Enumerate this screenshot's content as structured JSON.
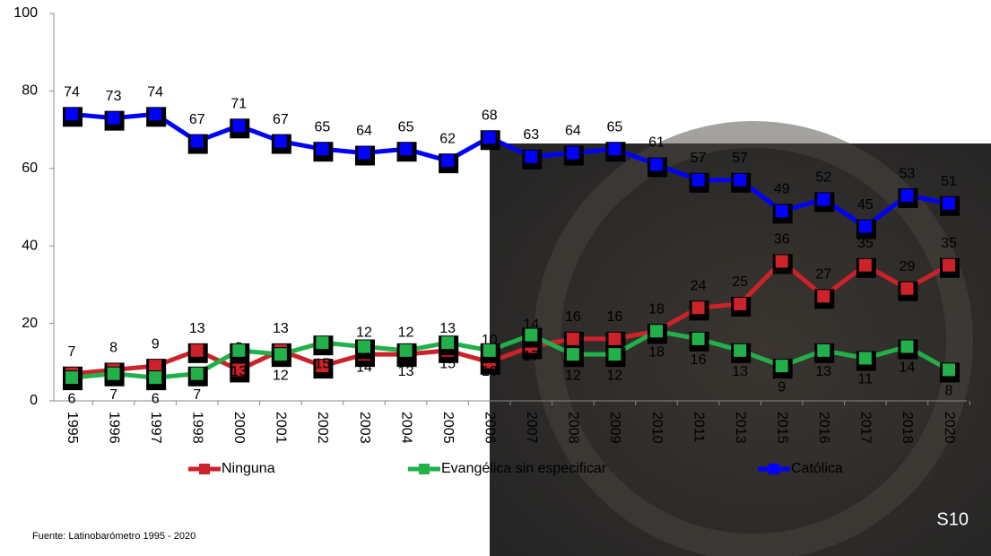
{
  "chart_data": {
    "type": "line",
    "categories": [
      "1995",
      "1996",
      "1997",
      "1998",
      "2000",
      "2001",
      "2002",
      "2003",
      "2004",
      "2005",
      "2006",
      "2007",
      "2008",
      "2009",
      "2010",
      "2011",
      "2013",
      "2015",
      "2016",
      "2017",
      "2018",
      "2020"
    ],
    "series": [
      {
        "name": "Ninguna",
        "color": "#cc2229",
        "values": [
          7,
          8,
          9,
          13,
          8,
          13,
          9,
          12,
          12,
          13,
          10,
          14,
          16,
          16,
          18,
          24,
          25,
          36,
          27,
          35,
          29,
          35
        ]
      },
      {
        "name": "Evangélica sin especificar",
        "color": "#22b04b",
        "values": [
          6,
          7,
          6,
          7,
          13,
          12,
          15,
          14,
          13,
          15,
          13,
          17,
          12,
          12,
          18,
          16,
          13,
          9,
          13,
          11,
          14,
          8
        ]
      },
      {
        "name": "Católica",
        "color": "#0000ff",
        "values": [
          74,
          73,
          74,
          67,
          71,
          67,
          65,
          64,
          65,
          62,
          68,
          63,
          64,
          65,
          61,
          57,
          57,
          49,
          52,
          45,
          53,
          51
        ]
      }
    ],
    "ylim": [
      0,
      100
    ],
    "yticks": [
      0,
      20,
      40,
      60,
      80,
      100
    ],
    "legend": "bottom",
    "source": "Fuente: Latinobarómetro  1995 - 2020",
    "badge": "S10"
  }
}
